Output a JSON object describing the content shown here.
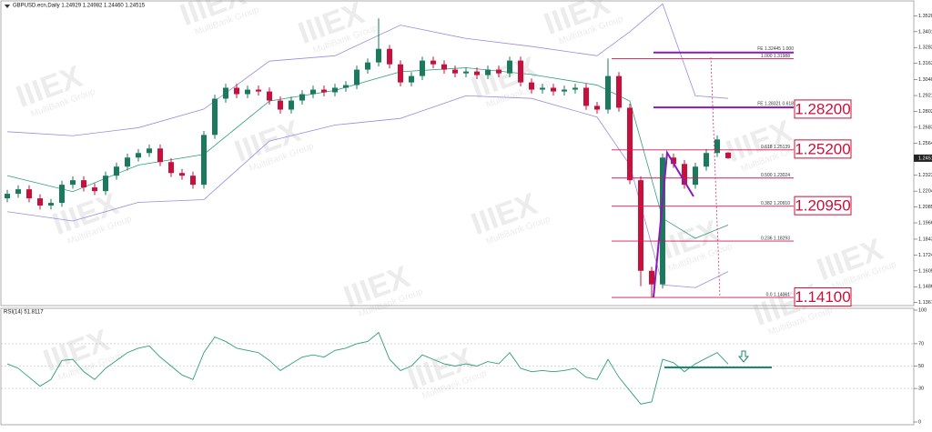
{
  "chart_data": {
    "type": "candlestick",
    "title": "GBPUSD.ecn,Daily  1.24929 1.24982 1.24460 1.24515",
    "up_color": "#1a7a5e",
    "down_color": "#c8103c",
    "open": [
      1.215,
      1.2184,
      1.2218,
      1.215,
      1.2096,
      1.2116,
      1.2252,
      1.2286,
      1.2232,
      1.2204,
      1.232,
      1.2388,
      1.2456,
      1.249,
      1.2524,
      1.2422,
      1.234,
      1.232,
      1.2252,
      1.2626,
      1.2898,
      1.298,
      1.2932,
      1.2966,
      1.2952,
      1.2884,
      1.2816,
      1.2884,
      1.2932,
      1.2966,
      1.2946,
      1.298,
      1.3,
      1.3116,
      1.317,
      1.3272,
      1.3156,
      1.302,
      1.3068,
      1.3184,
      1.3156,
      1.3116,
      1.3088,
      1.3102,
      1.3075,
      1.3116,
      1.3088,
      1.3184,
      1.302,
      1.2966,
      1.298,
      1.2952,
      1.2966,
      1.298,
      1.2844,
      1.2816,
      1.3068,
      1.283,
      1.2286,
      1.1606,
      1.1504,
      1.2456,
      1.2408,
      1.2252,
      1.2388,
      1.249,
      1.24929
    ],
    "high": [
      1.2214,
      1.2248,
      1.2248,
      1.218,
      1.2146,
      1.2282,
      1.2316,
      1.2316,
      1.2262,
      1.235,
      1.2418,
      1.2486,
      1.252,
      1.2554,
      1.2554,
      1.2452,
      1.237,
      1.235,
      1.2656,
      1.2928,
      1.301,
      1.301,
      1.2996,
      1.2996,
      1.2982,
      1.2914,
      1.2914,
      1.2962,
      1.2996,
      1.2996,
      1.301,
      1.303,
      1.3146,
      1.32,
      1.35,
      1.3302,
      1.3186,
      1.3098,
      1.3214,
      1.3214,
      1.3186,
      1.3146,
      1.3132,
      1.3132,
      1.3146,
      1.3146,
      1.3214,
      1.3214,
      1.305,
      1.301,
      1.301,
      1.2996,
      1.301,
      1.301,
      1.2874,
      1.3199,
      1.3098,
      1.286,
      1.2316,
      1.1636,
      1.2486,
      1.2486,
      1.2438,
      1.2418,
      1.252,
      1.2622,
      1.24982
    ],
    "low": [
      1.212,
      1.2154,
      1.212,
      1.2066,
      1.2066,
      1.2086,
      1.2222,
      1.2202,
      1.2174,
      1.2174,
      1.229,
      1.2358,
      1.2426,
      1.246,
      1.2392,
      1.231,
      1.229,
      1.2222,
      1.2222,
      1.2596,
      1.2868,
      1.2902,
      1.2902,
      1.2922,
      1.2854,
      1.2786,
      1.2786,
      1.2854,
      1.2902,
      1.2916,
      1.2916,
      1.295,
      1.297,
      1.3086,
      1.314,
      1.3126,
      1.299,
      1.299,
      1.3038,
      1.3126,
      1.3086,
      1.3058,
      1.3058,
      1.3045,
      1.3045,
      1.3058,
      1.3058,
      1.299,
      1.2936,
      1.2936,
      1.2922,
      1.2922,
      1.2936,
      1.2814,
      1.2786,
      1.2786,
      1.28,
      1.2256,
      1.149,
      1.14061,
      1.1474,
      1.2378,
      1.2222,
      1.2222,
      1.2358,
      1.246,
      1.2446
    ],
    "close": [
      1.2184,
      1.2218,
      1.215,
      1.2096,
      1.2116,
      1.2252,
      1.2286,
      1.2232,
      1.2204,
      1.232,
      1.2388,
      1.2456,
      1.249,
      1.2524,
      1.2422,
      1.234,
      1.232,
      1.2252,
      1.2626,
      1.2898,
      1.298,
      1.2932,
      1.2966,
      1.2952,
      1.2884,
      1.2816,
      1.2884,
      1.2932,
      1.2966,
      1.2946,
      1.298,
      1.3,
      1.3116,
      1.317,
      1.3272,
      1.3156,
      1.302,
      1.3068,
      1.3184,
      1.3156,
      1.3116,
      1.3088,
      1.3102,
      1.3075,
      1.3116,
      1.3088,
      1.3184,
      1.302,
      1.2966,
      1.298,
      1.2952,
      1.2966,
      1.298,
      1.2844,
      1.2816,
      1.3068,
      1.283,
      1.2286,
      1.1606,
      1.1504,
      1.2456,
      1.2408,
      1.2252,
      1.2388,
      1.249,
      1.2592,
      1.24515
    ],
    "bands": {
      "x": [
        0,
        6,
        12,
        18,
        24,
        30,
        36,
        42,
        48,
        54,
        57,
        60,
        63,
        66
      ],
      "upper_color": "#9a8be0",
      "middle_color": "#2e9d7e",
      "upper": [
        1.265,
        1.262,
        1.268,
        1.282,
        1.318,
        1.322,
        1.345,
        1.335,
        1.329,
        1.322,
        1.34,
        1.361,
        1.292,
        1.29
      ],
      "middle": [
        1.232,
        1.22,
        1.24,
        1.248,
        1.288,
        1.296,
        1.31,
        1.313,
        1.308,
        1.3,
        1.288,
        1.2,
        1.185,
        1.195
      ],
      "lower": [
        1.205,
        1.198,
        1.212,
        1.214,
        1.258,
        1.27,
        1.275,
        1.292,
        1.29,
        1.276,
        1.24,
        1.15,
        1.148,
        1.16
      ]
    },
    "ylim": [
      1.1345,
      1.3625
    ],
    "yticks": [
      {
        "value": 1.352,
        "label": "1.35200"
      },
      {
        "value": 1.3401,
        "label": "1.34010"
      },
      {
        "value": 1.3282,
        "label": "1.32820"
      },
      {
        "value": 1.3163,
        "label": "1.31630"
      },
      {
        "value": 1.30405,
        "label": "1.30405"
      },
      {
        "value": 1.29215,
        "label": "1.29215"
      },
      {
        "value": 1.28025,
        "label": "1.28025"
      },
      {
        "value": 1.26835,
        "label": "1.26835"
      },
      {
        "value": 1.25645,
        "label": "1.25645"
      },
      {
        "value": 1.2323,
        "label": "1.23230"
      },
      {
        "value": 1.2204,
        "label": "1.22040"
      },
      {
        "value": 1.2085,
        "label": "1.20850"
      },
      {
        "value": 1.1966,
        "label": "1.19660"
      },
      {
        "value": 1.18435,
        "label": "1.18435"
      },
      {
        "value": 1.17245,
        "label": "1.17245"
      },
      {
        "value": 1.16055,
        "label": "1.16055"
      },
      {
        "value": 1.14865,
        "label": "1.14865"
      },
      {
        "value": 1.13675,
        "label": "1.13675"
      }
    ],
    "fib_levels": [
      {
        "value": 1.31988,
        "label": "1.000  1.31988"
      },
      {
        "value": 1.25139,
        "label": "0.618  1.25139"
      },
      {
        "value": 1.23024,
        "label": "0.500  1.23024"
      },
      {
        "value": 1.2091,
        "label": "0.382  1.20910"
      },
      {
        "value": 1.18293,
        "label": "0.236  1.18293"
      },
      {
        "value": 1.14061,
        "label": "0.0  1.14061"
      }
    ],
    "fe_levels": [
      {
        "value": 1.32445,
        "label": "FE 1.32445  1.000"
      },
      {
        "value": 1.28321,
        "label": "FE 1.28321  0.618"
      }
    ],
    "key_levels": [
      {
        "value": 1.282,
        "label": "1.28200"
      },
      {
        "value": 1.252,
        "label": "1.25200"
      },
      {
        "value": 1.2095,
        "label": "1.20950"
      },
      {
        "value": 1.141,
        "label": "1.14100"
      }
    ],
    "rsi": {
      "title": "RSI(14) 51.8117",
      "color": "#2e9d7e",
      "values": [
        52,
        48,
        40,
        32,
        38,
        55,
        56,
        45,
        38,
        48,
        55,
        62,
        66,
        68,
        58,
        50,
        42,
        38,
        62,
        76,
        72,
        66,
        64,
        62,
        55,
        46,
        52,
        58,
        60,
        58,
        64,
        66,
        70,
        72,
        80,
        56,
        46,
        50,
        60,
        56,
        52,
        50,
        52,
        50,
        54,
        52,
        62,
        48,
        45,
        46,
        45,
        46,
        48,
        40,
        38,
        56,
        40,
        28,
        16,
        18,
        56,
        53,
        45,
        52,
        57,
        62,
        51.8117
      ],
      "ylim": [
        0,
        100
      ],
      "yticks": [
        100,
        70,
        50,
        30,
        0
      ]
    },
    "watermark": {
      "logo": "IIIEX",
      "text": "MultiBank Group"
    }
  }
}
